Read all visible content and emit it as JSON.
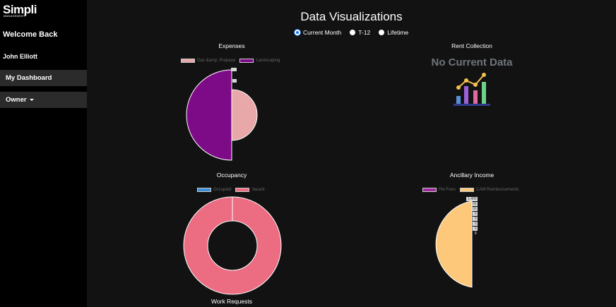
{
  "brand": {
    "name": "Simpli",
    "tagline": "MANAGEMENT"
  },
  "sidebar": {
    "welcome": "Welcome Back",
    "user_name": "John Elliott",
    "nav": {
      "dashboard": "My Dashboard",
      "owner": "Owner"
    }
  },
  "main": {
    "title": "Data Visualizations",
    "period_options": [
      {
        "label": "Current Month",
        "selected": true
      },
      {
        "label": "T-12",
        "selected": false
      },
      {
        "label": "Lifetime",
        "selected": false
      }
    ]
  },
  "panels": {
    "expenses": {
      "title": "Expenses",
      "legend": [
        "Gas &amp; Propane",
        "Landscaping"
      ]
    },
    "rent": {
      "title": "Rent Collection",
      "message": "No Current Data",
      "icon": "chart-icon"
    },
    "occupancy": {
      "title": "Occupancy",
      "legend": [
        "Occupied",
        "Vacant"
      ]
    },
    "ancillary": {
      "title": "Ancillary Income",
      "legend": [
        "Pet Fees",
        "CAM Reimbursements"
      ],
      "ticks": [
        "1,400",
        "00",
        "00",
        "0",
        "0",
        "0",
        "0",
        "0"
      ]
    },
    "work_requests": {
      "title": "Work Requests"
    }
  },
  "colors": {
    "gas": "#e8a7a8",
    "landscaping": "#7d0a87",
    "occupied": "#3b8fd8",
    "vacant": "#ec6c82",
    "pet": "#a0289e",
    "cam": "#fdc87a",
    "selected_radio": "#1a6fe0"
  },
  "chart_data": [
    {
      "type": "pie",
      "title": "Expenses",
      "labels": [
        "Gas &amp; Propane",
        "Landscaping"
      ],
      "note": "polar-area style slices of unequal radius"
    },
    {
      "type": "pie",
      "title": "Occupancy",
      "labels": [
        "Occupied",
        "Vacant"
      ],
      "values": [
        0,
        100
      ]
    },
    {
      "type": "pie",
      "title": "Ancillary Income",
      "labels": [
        "Pet Fees",
        "CAM Reimbursements"
      ],
      "values": [
        0,
        1400
      ],
      "tick_labels": [
        "1,400"
      ]
    }
  ]
}
